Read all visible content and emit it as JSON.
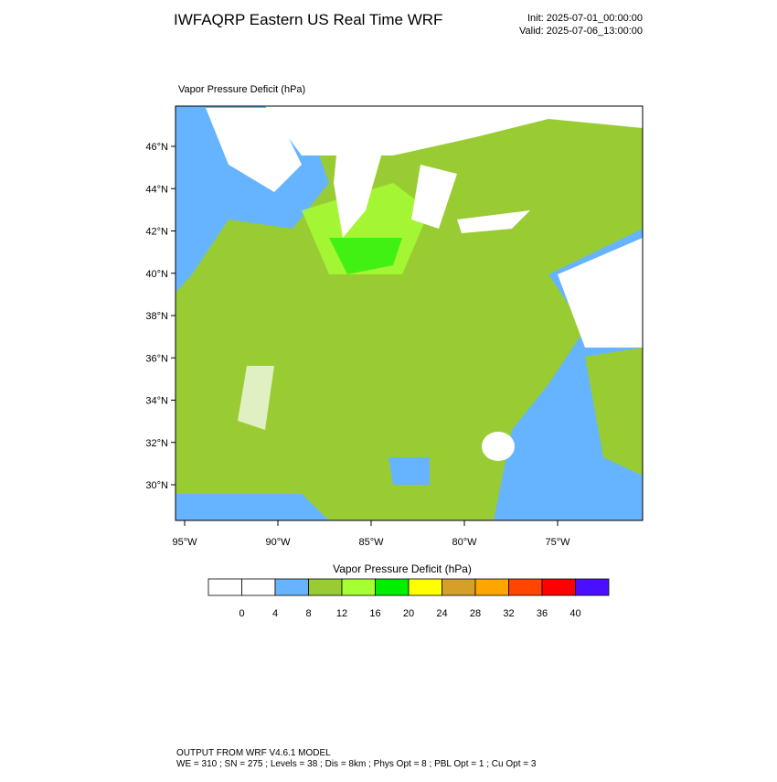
{
  "header": {
    "title": "IWFAQRP Eastern US Real Time WRF",
    "init": "Init: 2025-07-01_00:00:00",
    "valid": "Valid: 2025-07-06_13:00:00"
  },
  "map": {
    "title": "Vapor Pressure Deficit   (hPa)",
    "lat_labels": [
      "46°N",
      "44°N",
      "42°N",
      "40°N",
      "38°N",
      "36°N",
      "34°N",
      "32°N",
      "30°N"
    ],
    "lon_labels": [
      "95°W",
      "90°W",
      "85°W",
      "80°W",
      "75°W"
    ]
  },
  "colorbar": {
    "title": "Vapor Pressure Deficit  (hPa)",
    "colors": [
      "#ffffff",
      "#ffffff",
      "#66b3ff",
      "#99cc33",
      "#a6ff33",
      "#00ee00",
      "#ffff00",
      "#d4a02a",
      "#ffa500",
      "#ff4500",
      "#ff0000",
      "#4b0fff"
    ],
    "labels": [
      0,
      4,
      8,
      12,
      16,
      20,
      24,
      28,
      32,
      36,
      40
    ]
  },
  "footer": {
    "line1": "OUTPUT FROM WRF V4.6.1 MODEL",
    "line2": "WE = 310 ; SN = 275 ; Levels = 38 ; Dis = 8km ; Phys Opt = 8 ; PBL Opt = 1 ; Cu Opt = 3"
  }
}
